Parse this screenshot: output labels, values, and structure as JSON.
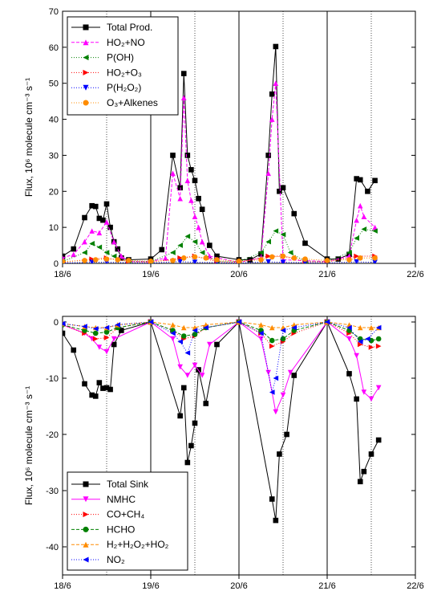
{
  "chart_data": [
    {
      "type": "line",
      "ylabel": "Flux, 10⁶ molecule cm⁻³ s⁻¹",
      "ylim": [
        0,
        70
      ],
      "yticks": [
        0,
        10,
        20,
        30,
        40,
        50,
        60,
        70
      ],
      "xlim": [
        "18/6",
        "22/6"
      ],
      "xticks": [
        "18/6",
        "19/6",
        "20/6",
        "21/6",
        "22/6"
      ],
      "grid": "vertical lines at midnight (solid) and noon (dotted)",
      "legend_position": "top-left",
      "series": [
        {
          "name": "Total Prod.",
          "marker": "square",
          "color": "#000000",
          "dash": "solid",
          "x": [
            "18/6 00:00",
            "18/6 03:00",
            "18/6 06:00",
            "18/6 08:00",
            "18/6 09:00",
            "18/6 10:00",
            "18/6 11:00",
            "18/6 12:00",
            "18/6 13:00",
            "18/6 14:00",
            "18/6 15:00",
            "18/6 16:00",
            "18/6 18:00",
            "19/6 00:00",
            "19/6 03:00",
            "19/6 06:00",
            "19/6 08:00",
            "19/6 09:00",
            "19/6 10:00",
            "19/6 11:00",
            "19/6 12:00",
            "19/6 13:00",
            "19/6 14:00",
            "19/6 16:00",
            "19/6 18:00",
            "20/6 00:00",
            "20/6 03:00",
            "20/6 06:00",
            "20/6 08:00",
            "20/6 09:00",
            "20/6 10:00",
            "20/6 11:00",
            "20/6 12:00",
            "20/6 15:00",
            "20/6 18:00",
            "21/6 00:00",
            "21/6 03:00",
            "21/6 06:00",
            "21/6 08:00",
            "21/6 09:00",
            "21/6 11:00",
            "21/6 13:00"
          ],
          "y": [
            2,
            4,
            12.7,
            16,
            15.8,
            12.5,
            12,
            16.5,
            10,
            6,
            4,
            1.5,
            1,
            1.2,
            3.8,
            30,
            21,
            52.7,
            30,
            26,
            23,
            18,
            15,
            5,
            2,
            1,
            1,
            2.6,
            30,
            47,
            60.2,
            20,
            21,
            13.8,
            5.6,
            1.2,
            1.2,
            2.5,
            23.5,
            23.2,
            20,
            23
          ]
        },
        {
          "name": "HO₂+NO",
          "marker": "triangle-up",
          "color": "#ff00ff",
          "dash": "dashed",
          "x": [
            "18/6 00:00",
            "18/6 03:00",
            "18/6 06:00",
            "18/6 08:00",
            "18/6 10:00",
            "18/6 12:00",
            "18/6 14:00",
            "18/6 16:00",
            "18/6 18:00",
            "19/6 00:00",
            "19/6 04:00",
            "19/6 06:00",
            "19/6 08:00",
            "19/6 09:00",
            "19/6 10:00",
            "19/6 11:00",
            "19/6 12:00",
            "19/6 13:00",
            "19/6 14:00",
            "19/6 16:00",
            "20/6 00:00",
            "20/6 06:00",
            "20/6 08:00",
            "20/6 09:00",
            "20/6 10:00",
            "20/6 12:00",
            "21/6 00:00",
            "21/6 06:00",
            "21/6 08:00",
            "21/6 09:00",
            "21/6 10:00",
            "21/6 13:00"
          ],
          "y": [
            1.5,
            2.5,
            6,
            9,
            8.5,
            11.5,
            6,
            2,
            0.5,
            0.5,
            1.5,
            25,
            18,
            46,
            23,
            17.5,
            13,
            10,
            6,
            2,
            0.3,
            1.5,
            25,
            40,
            50,
            1,
            0.5,
            2,
            12,
            16,
            13,
            10
          ]
        },
        {
          "name": "P(OH)",
          "marker": "triangle-left",
          "color": "#008000",
          "dash": "dotted",
          "x": [
            "18/6 00:00",
            "18/6 06:00",
            "18/6 08:00",
            "18/6 10:00",
            "18/6 12:00",
            "18/6 14:00",
            "18/6 18:00",
            "19/6 00:00",
            "19/6 06:00",
            "19/6 08:00",
            "19/6 10:00",
            "19/6 12:00",
            "19/6 14:00",
            "19/6 18:00",
            "20/6 00:00",
            "20/6 06:00",
            "20/6 08:00",
            "20/6 10:00",
            "20/6 12:00",
            "20/6 14:00",
            "20/6 18:00",
            "21/6 00:00",
            "21/6 06:00",
            "21/6 08:00",
            "21/6 10:00",
            "21/6 13:00"
          ],
          "y": [
            0.5,
            3,
            5.5,
            4.5,
            3,
            2,
            0.5,
            0.5,
            3,
            5,
            7.5,
            6,
            3,
            0.5,
            0.5,
            3,
            6,
            9,
            8,
            3,
            0.5,
            0.5,
            3,
            7,
            9.5,
            9
          ]
        },
        {
          "name": "HO₂+O₃",
          "marker": "triangle-right",
          "color": "#ff0000",
          "dash": "dotted",
          "x": [
            "18/6 00:00",
            "18/6 08:00",
            "18/6 12:00",
            "18/6 18:00",
            "19/6 00:00",
            "19/6 08:00",
            "19/6 12:00",
            "19/6 18:00",
            "20/6 00:00",
            "20/6 08:00",
            "20/6 12:00",
            "20/6 18:00",
            "21/6 00:00",
            "21/6 08:00",
            "21/6 13:00"
          ],
          "y": [
            0.3,
            1.2,
            1.5,
            0.5,
            0.3,
            1.5,
            2,
            0.5,
            0.3,
            2,
            2,
            0.5,
            0.3,
            2,
            2
          ]
        },
        {
          "name": "P(H₂O₂)",
          "marker": "triangle-down",
          "color": "#0000ff",
          "dash": "dotted",
          "x": [
            "18/6 00:00",
            "18/6 08:00",
            "18/6 12:00",
            "18/6 18:00",
            "19/6 00:00",
            "19/6 08:00",
            "19/6 12:00",
            "19/6 18:00",
            "20/6 00:00",
            "20/6 08:00",
            "20/6 12:00",
            "20/6 18:00",
            "21/6 00:00",
            "21/6 08:00",
            "21/6 13:00"
          ],
          "y": [
            0.1,
            0.3,
            0.3,
            0.2,
            0.1,
            0.5,
            0.3,
            0.2,
            0.1,
            0.4,
            0.3,
            0.2,
            0.1,
            0.4,
            0.3
          ]
        },
        {
          "name": "O₃+Alkenes",
          "marker": "circle",
          "color": "#ff8c00",
          "dash": "dotted",
          "x": [
            "18/6 00:00",
            "18/6 06:00",
            "18/6 09:00",
            "18/6 12:00",
            "18/6 15:00",
            "18/6 18:00",
            "19/6 00:00",
            "19/6 06:00",
            "19/6 09:00",
            "19/6 12:00",
            "19/6 15:00",
            "19/6 18:00",
            "20/6 00:00",
            "20/6 06:00",
            "20/6 09:00",
            "20/6 12:00",
            "20/6 15:00",
            "20/6 18:00",
            "21/6 00:00",
            "21/6 06:00",
            "21/6 09:00",
            "21/6 13:00"
          ],
          "y": [
            0.5,
            0.8,
            1,
            1.2,
            1,
            0.8,
            0.6,
            0.8,
            1.5,
            1.8,
            1.5,
            1,
            0.6,
            1,
            1.8,
            2,
            1.5,
            1.2,
            0.8,
            1,
            1.5,
            1.5
          ]
        }
      ]
    },
    {
      "type": "line",
      "ylabel": "Flux, 10⁶ molecule cm⁻³ s⁻¹",
      "ylim": [
        -45,
        1
      ],
      "yticks": [
        0,
        -10,
        -20,
        -30,
        -40
      ],
      "xlim": [
        "18/6",
        "22/6"
      ],
      "xticks": [
        "18/6",
        "19/6",
        "20/6",
        "21/6",
        "22/6"
      ],
      "grid": "vertical lines at midnight (solid) and noon (dotted)",
      "legend_position": "bottom-left",
      "series": [
        {
          "name": "Total Sink",
          "marker": "square",
          "color": "#000000",
          "dash": "solid",
          "x": [
            "18/6 00:00",
            "18/6 03:00",
            "18/6 06:00",
            "18/6 08:00",
            "18/6 09:00",
            "18/6 10:00",
            "18/6 11:00",
            "18/6 12:00",
            "18/6 13:00",
            "18/6 14:00",
            "18/6 16:00",
            "19/6 00:00",
            "19/6 08:00",
            "19/6 09:00",
            "19/6 10:00",
            "19/6 11:00",
            "19/6 12:00",
            "19/6 13:00",
            "19/6 15:00",
            "19/6 18:00",
            "20/6 00:00",
            "20/6 09:00",
            "20/6 10:00",
            "20/6 11:00",
            "20/6 13:00",
            "20/6 15:00",
            "21/6 00:00",
            "21/6 06:00",
            "21/6 08:00",
            "21/6 09:00",
            "21/6 10:00",
            "21/6 12:00",
            "21/6 14:00"
          ],
          "y": [
            -2,
            -5,
            -11,
            -13,
            -13.2,
            -10.8,
            -11.8,
            -11.7,
            -12,
            -4,
            -1.5,
            0,
            -16.7,
            -11.7,
            -25,
            -22,
            -18,
            -8.5,
            -14.5,
            -4,
            0,
            -31.5,
            -35.3,
            -23.5,
            -20,
            -9.5,
            0,
            -9.2,
            -13.7,
            -28.4,
            -26.6,
            -23.5,
            -21
          ]
        },
        {
          "name": "NMHC",
          "marker": "triangle-down",
          "color": "#ff00ff",
          "dash": "solid",
          "x": [
            "18/6 00:00",
            "18/6 06:00",
            "18/6 08:00",
            "18/6 10:00",
            "18/6 12:00",
            "18/6 14:00",
            "19/6 00:00",
            "19/6 06:00",
            "19/6 08:00",
            "19/6 10:00",
            "19/6 12:00",
            "19/6 14:00",
            "19/6 16:00",
            "20/6 00:00",
            "20/6 06:00",
            "20/6 08:00",
            "20/6 10:00",
            "20/6 12:00",
            "20/6 14:00",
            "21/6 00:00",
            "21/6 06:00",
            "21/6 08:00",
            "21/6 10:00",
            "21/6 12:00",
            "21/6 14:00"
          ],
          "y": [
            -0.5,
            -2,
            -3,
            -4.5,
            -5.3,
            -3,
            0,
            -3,
            -8,
            -9.5,
            -7.7,
            -9.5,
            -4,
            0,
            -3,
            -9,
            -16,
            -13,
            -9,
            0,
            -3,
            -6,
            -12.5,
            -13.7,
            -11.7
          ]
        },
        {
          "name": "CO+CH₄",
          "marker": "triangle-right",
          "color": "#ff0000",
          "dash": "dotted",
          "x": [
            "18/6 00:00",
            "18/6 06:00",
            "18/6 09:00",
            "18/6 12:00",
            "18/6 15:00",
            "19/6 00:00",
            "19/6 06:00",
            "19/6 09:00",
            "19/6 12:00",
            "19/6 15:00",
            "20/6 00:00",
            "20/6 06:00",
            "20/6 09:00",
            "20/6 12:00",
            "20/6 15:00",
            "21/6 00:00",
            "21/6 06:00",
            "21/6 09:00",
            "21/6 12:00",
            "21/6 14:00"
          ],
          "y": [
            -0.5,
            -2,
            -3,
            -2.8,
            -1,
            0,
            -1.5,
            -3,
            -2.5,
            -1,
            0,
            -2,
            -4.3,
            -3.5,
            -2,
            0,
            -2,
            -4,
            -4.5,
            -4.3
          ]
        },
        {
          "name": "HCHO",
          "marker": "circle",
          "color": "#008000",
          "dash": "dashed",
          "x": [
            "18/6 00:00",
            "18/6 06:00",
            "18/6 09:00",
            "18/6 12:00",
            "18/6 15:00",
            "19/6 00:00",
            "19/6 06:00",
            "19/6 09:00",
            "19/6 12:00",
            "19/6 15:00",
            "20/6 00:00",
            "20/6 06:00",
            "20/6 09:00",
            "20/6 12:00",
            "20/6 15:00",
            "21/6 00:00",
            "21/6 06:00",
            "21/6 09:00",
            "21/6 12:00",
            "21/6 14:00"
          ],
          "y": [
            -0.5,
            -1.5,
            -2,
            -1.8,
            -1,
            0,
            -1.5,
            -2.5,
            -2.2,
            -1,
            0,
            -1.5,
            -3.3,
            -3,
            -1.5,
            0,
            -1.5,
            -3,
            -3.3,
            -3
          ]
        },
        {
          "name": "H₂+H₂O₂+HO₂",
          "marker": "triangle-up",
          "color": "#ff8c00",
          "dash": "dashed",
          "x": [
            "18/6 00:00",
            "18/6 06:00",
            "18/6 09:00",
            "18/6 12:00",
            "18/6 15:00",
            "19/6 00:00",
            "19/6 06:00",
            "19/6 09:00",
            "19/6 12:00",
            "19/6 15:00",
            "20/6 00:00",
            "20/6 06:00",
            "20/6 09:00",
            "20/6 12:00",
            "20/6 15:00",
            "21/6 00:00",
            "21/6 06:00",
            "21/6 09:00",
            "21/6 12:00",
            "21/6 14:00"
          ],
          "y": [
            -0.3,
            -0.8,
            -1,
            -1,
            -0.5,
            0,
            -0.5,
            -1,
            -1,
            -0.5,
            0,
            -0.5,
            -1,
            -1,
            -0.5,
            0,
            -0.5,
            -1,
            -1,
            -1
          ]
        },
        {
          "name": "NO₂",
          "marker": "triangle-left",
          "color": "#0000ff",
          "dash": "dotted",
          "x": [
            "18/6 00:00",
            "18/6 06:00",
            "18/6 09:00",
            "18/6 12:00",
            "18/6 15:00",
            "19/6 00:00",
            "19/6 06:00",
            "19/6 08:00",
            "19/6 10:00",
            "19/6 12:00",
            "19/6 15:00",
            "20/6 00:00",
            "20/6 06:00",
            "20/6 09:00",
            "20/6 10:00",
            "20/6 12:00",
            "20/6 15:00",
            "21/6 00:00",
            "21/6 06:00",
            "21/6 09:00",
            "21/6 11:00",
            "21/6 14:00"
          ],
          "y": [
            -0.3,
            -0.8,
            -1.2,
            -1,
            -0.5,
            0,
            -2,
            -3.5,
            -5.5,
            -1.5,
            -1,
            0,
            -2,
            -12.5,
            -10,
            -1.5,
            -1,
            0,
            -1,
            -3.5,
            -3,
            -1
          ]
        }
      ]
    }
  ]
}
